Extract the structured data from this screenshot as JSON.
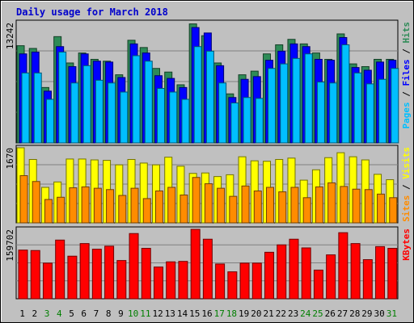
{
  "chart_data": {
    "type": "bar",
    "title": "Daily usage for March 2018",
    "categories": [
      "1",
      "2",
      "3",
      "4",
      "5",
      "6",
      "7",
      "8",
      "9",
      "10",
      "11",
      "12",
      "13",
      "14",
      "15",
      "16",
      "17",
      "18",
      "19",
      "20",
      "21",
      "22",
      "23",
      "24",
      "25",
      "26",
      "27",
      "28",
      "29",
      "30",
      "31"
    ],
    "weekend_days": [
      "3",
      "4",
      "10",
      "11",
      "17",
      "18",
      "24",
      "25",
      "31"
    ],
    "panels": [
      {
        "id": "hits_files_pages",
        "ymax_label": "13242",
        "ymax": 13242,
        "legend": [
          "Pages",
          "Files",
          "Hits"
        ],
        "series": [
          {
            "name": "Hits",
            "color": "#2E8B57",
            "values": [
              10700,
              10400,
              6100,
              11700,
              8800,
              9900,
              9200,
              9000,
              7500,
              11300,
              10500,
              8200,
              7800,
              6400,
              13100,
              11800,
              8800,
              5400,
              7500,
              7900,
              9800,
              10800,
              11400,
              10900,
              9900,
              9200,
              12000,
              8700,
              8400,
              9200,
              9200
            ]
          },
          {
            "name": "Files",
            "color": "#0000FF",
            "values": [
              9800,
              10000,
              5700,
              10600,
              8400,
              9800,
              9000,
              8900,
              7200,
              10900,
              9900,
              7400,
              7100,
              6100,
              12700,
              12100,
              8500,
              5000,
              7000,
              7300,
              9100,
              10100,
              10900,
              10600,
              9200,
              9100,
              11600,
              8300,
              8000,
              8900,
              9100
            ]
          },
          {
            "name": "Pages",
            "color": "#00BFFF",
            "values": [
              7700,
              7700,
              4800,
              10000,
              6600,
              8500,
              6900,
              6600,
              5600,
              9600,
              9000,
              6000,
              5600,
              4800,
              10600,
              10100,
              6600,
              4400,
              5000,
              4900,
              8200,
              8700,
              9300,
              9800,
              6700,
              6600,
              10800,
              7700,
              6500,
              7000,
              8200
            ]
          }
        ]
      },
      {
        "id": "visits_sites",
        "ymax_label": "1670",
        "ymax": 1670,
        "legend": [
          "Sites",
          "Visits"
        ],
        "series": [
          {
            "name": "Visits",
            "color": "#FFFF00",
            "values": [
              1670,
              1410,
              790,
              910,
              1420,
              1420,
              1400,
              1390,
              1290,
              1410,
              1330,
              1290,
              1460,
              1260,
              1100,
              1110,
              1030,
              1070,
              1470,
              1380,
              1370,
              1410,
              1440,
              950,
              1180,
              1450,
              1560,
              1470,
              1400,
              1080,
              960
            ]
          },
          {
            "name": "Sites",
            "color": "#FF8C00",
            "values": [
              1050,
              920,
              520,
              570,
              780,
              800,
              770,
              740,
              610,
              770,
              540,
              710,
              790,
              620,
              1010,
              870,
              770,
              590,
              820,
              710,
              790,
              690,
              790,
              560,
              800,
              890,
              810,
              750,
              740,
              640,
              560
            ]
          }
        ]
      },
      {
        "id": "kbytes",
        "ymax_label": "159702",
        "ymax": 159702,
        "legend": [
          "KBytes"
        ],
        "series": [
          {
            "name": "KBytes",
            "color": "#FF0000",
            "values": [
              112000,
              111000,
              82000,
              135000,
              98000,
              127000,
              114000,
              121000,
              88000,
              150000,
              116000,
              73000,
              85000,
              86000,
              159702,
              137000,
              80000,
              62000,
              82000,
              82000,
              107000,
              124000,
              137000,
              117000,
              66000,
              101000,
              152000,
              127000,
              90000,
              120000,
              116000
            ]
          }
        ]
      }
    ]
  }
}
